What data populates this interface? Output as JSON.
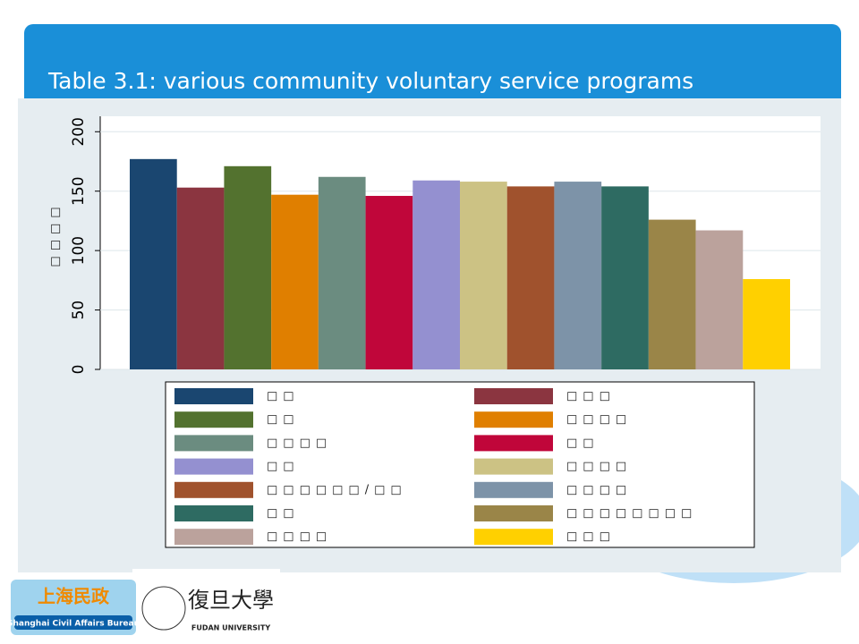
{
  "chart_data": {
    "type": "bar",
    "title": "Table 3.1: various community voluntary service programs",
    "y_label": "□□□□",
    "categories": [
      "□□",
      "□□□",
      "□□",
      "□□□□",
      "□□□□",
      "□□",
      "□□",
      "□□□□",
      "□□□□□□/□□",
      "□□□□",
      "□□",
      "□□□□□□□□",
      "□□□□",
      "□□□"
    ],
    "values": [
      177,
      153,
      171,
      147,
      162,
      146,
      159,
      158,
      154,
      158,
      154,
      126,
      117,
      76
    ],
    "colors": [
      "#1a4670",
      "#8b3540",
      "#53722f",
      "#e07f00",
      "#6b8c80",
      "#c0063a",
      "#9490d0",
      "#ccc284",
      "#a0522d",
      "#7d93a8",
      "#2e6b62",
      "#9a8548",
      "#bba29c",
      "#ffd000"
    ],
    "ylim": [
      0,
      213
    ],
    "yticks": [
      0,
      50,
      100,
      150,
      200
    ],
    "grid": true
  },
  "logos": {
    "civil_affairs": "上海民政",
    "civil_affairs_en": "Shanghai Civil Affairs Bureau",
    "fudan": "復旦大學",
    "fudan_en": "FUDAN UNIVERSITY"
  }
}
